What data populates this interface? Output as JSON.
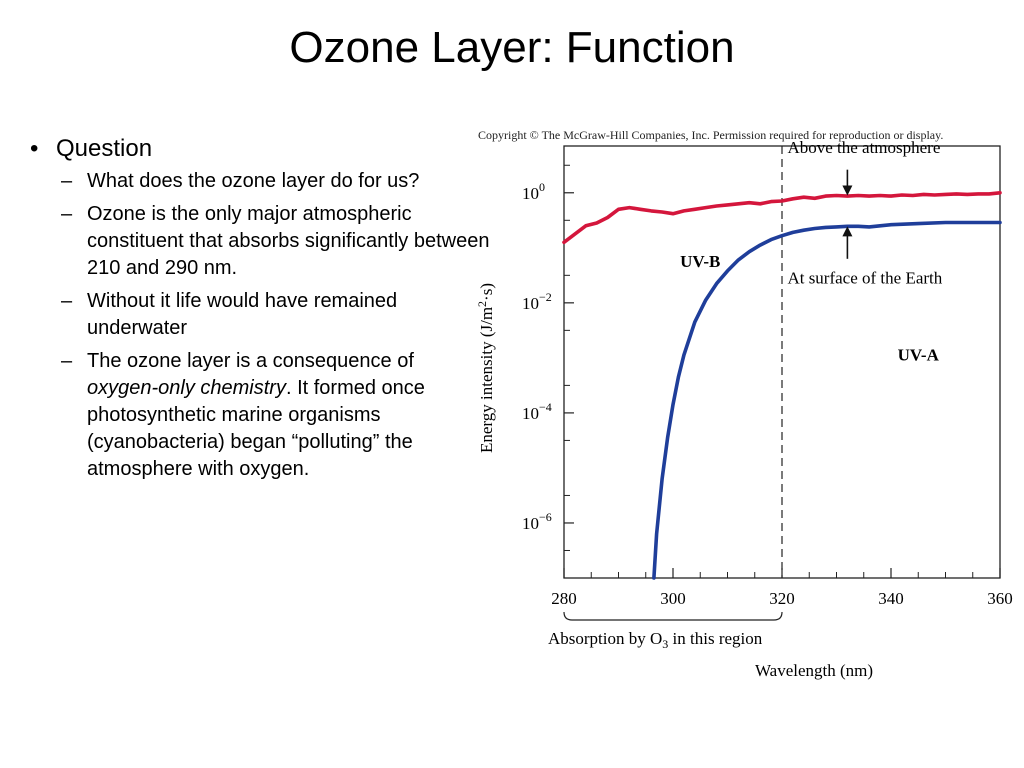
{
  "slide": {
    "title": "Ozone Layer: Function",
    "bullet_mark": "•",
    "sub_mark": "–",
    "bullets": [
      {
        "text": "Question",
        "sub": [
          {
            "text": "What does the ozone layer do for us?"
          },
          {
            "text": "Ozone is the only major atmospheric constituent that absorbs significantly between 210 and 290 nm."
          },
          {
            "text": "Without it life would have remained underwater"
          },
          {
            "text_before": "The ozone layer is a consequence of ",
            "text_italic": "oxygen-only chemistry",
            "text_after": ". It formed once photosynthetic marine organisms (cyanobacteria) began “polluting” the atmosphere with oxygen."
          }
        ]
      }
    ]
  },
  "chart_data": {
    "type": "line",
    "copyright": "Copyright © The McGraw-Hill Companies, Inc. Permission required for reproduction or display.",
    "xlabel": "Wavelength (nm)",
    "ylabel": {
      "prefix": "Energy intensity (J/m",
      "sup": "2",
      "suffix": "·s)"
    },
    "xlim": [
      280,
      360
    ],
    "ylim_log10": [
      -7,
      0.85
    ],
    "y_scale": "log",
    "x_ticks": [
      "280",
      "300",
      "320",
      "340",
      "360"
    ],
    "y_ticks": [
      {
        "base": "10",
        "exp": "0"
      },
      {
        "base": "10",
        "exp": "−2"
      },
      {
        "base": "10",
        "exp": "−4"
      },
      {
        "base": "10",
        "exp": "−6"
      }
    ],
    "y_tick_exps": [
      0,
      -2,
      -4,
      -6
    ],
    "divider_x": 320,
    "region_labels": {
      "uvb": "UV-B",
      "uva": "UV-A"
    },
    "absorption_label": {
      "prefix": "Absorption by O",
      "sub": "3",
      "suffix": " in this region"
    },
    "series": [
      {
        "label": "Above the atmosphere",
        "color": "#d4163c",
        "points": [
          [
            280,
            -0.9
          ],
          [
            282,
            -0.75
          ],
          [
            284,
            -0.6
          ],
          [
            286,
            -0.55
          ],
          [
            288,
            -0.45
          ],
          [
            290,
            -0.3
          ],
          [
            292,
            -0.27
          ],
          [
            294,
            -0.3
          ],
          [
            296,
            -0.33
          ],
          [
            298,
            -0.35
          ],
          [
            300,
            -0.38
          ],
          [
            302,
            -0.33
          ],
          [
            304,
            -0.3
          ],
          [
            306,
            -0.27
          ],
          [
            308,
            -0.24
          ],
          [
            310,
            -0.22
          ],
          [
            312,
            -0.2
          ],
          [
            314,
            -0.18
          ],
          [
            316,
            -0.2
          ],
          [
            318,
            -0.16
          ],
          [
            320,
            -0.15
          ],
          [
            322,
            -0.11
          ],
          [
            324,
            -0.08
          ],
          [
            326,
            -0.1
          ],
          [
            328,
            -0.06
          ],
          [
            330,
            -0.05
          ],
          [
            332,
            -0.06
          ],
          [
            334,
            -0.05
          ],
          [
            336,
            -0.06
          ],
          [
            338,
            -0.05
          ],
          [
            340,
            -0.06
          ],
          [
            342,
            -0.04
          ],
          [
            344,
            -0.05
          ],
          [
            346,
            -0.03
          ],
          [
            348,
            -0.04
          ],
          [
            350,
            -0.03
          ],
          [
            352,
            -0.02
          ],
          [
            354,
            -0.03
          ],
          [
            356,
            -0.02
          ],
          [
            358,
            -0.02
          ],
          [
            360,
            0.0
          ]
        ]
      },
      {
        "label": "At surface of the Earth",
        "color": "#1f3e9a",
        "points": [
          [
            296.5,
            -7.0
          ],
          [
            297,
            -6.2
          ],
          [
            298,
            -5.2
          ],
          [
            299,
            -4.45
          ],
          [
            300,
            -3.85
          ],
          [
            301,
            -3.35
          ],
          [
            302,
            -2.95
          ],
          [
            304,
            -2.35
          ],
          [
            306,
            -1.95
          ],
          [
            308,
            -1.65
          ],
          [
            310,
            -1.42
          ],
          [
            312,
            -1.22
          ],
          [
            314,
            -1.07
          ],
          [
            316,
            -0.95
          ],
          [
            318,
            -0.85
          ],
          [
            320,
            -0.78
          ],
          [
            322,
            -0.72
          ],
          [
            324,
            -0.68
          ],
          [
            326,
            -0.65
          ],
          [
            328,
            -0.63
          ],
          [
            330,
            -0.62
          ],
          [
            332,
            -0.61
          ],
          [
            334,
            -0.61
          ],
          [
            336,
            -0.62
          ],
          [
            338,
            -0.6
          ],
          [
            340,
            -0.58
          ],
          [
            345,
            -0.56
          ],
          [
            350,
            -0.54
          ],
          [
            355,
            -0.54
          ],
          [
            360,
            -0.54
          ]
        ]
      }
    ],
    "annotations": [
      {
        "text": "Above the atmosphere",
        "x": 321,
        "y": 0.72,
        "arrow_to": [
          332,
          -0.05
        ],
        "arrow_from": [
          332,
          0.42
        ]
      },
      {
        "text": "At surface of the Earth",
        "x": 321,
        "y": -1.65,
        "arrow_to": [
          332,
          -0.61
        ],
        "arrow_from": [
          332,
          -1.2
        ]
      }
    ]
  }
}
